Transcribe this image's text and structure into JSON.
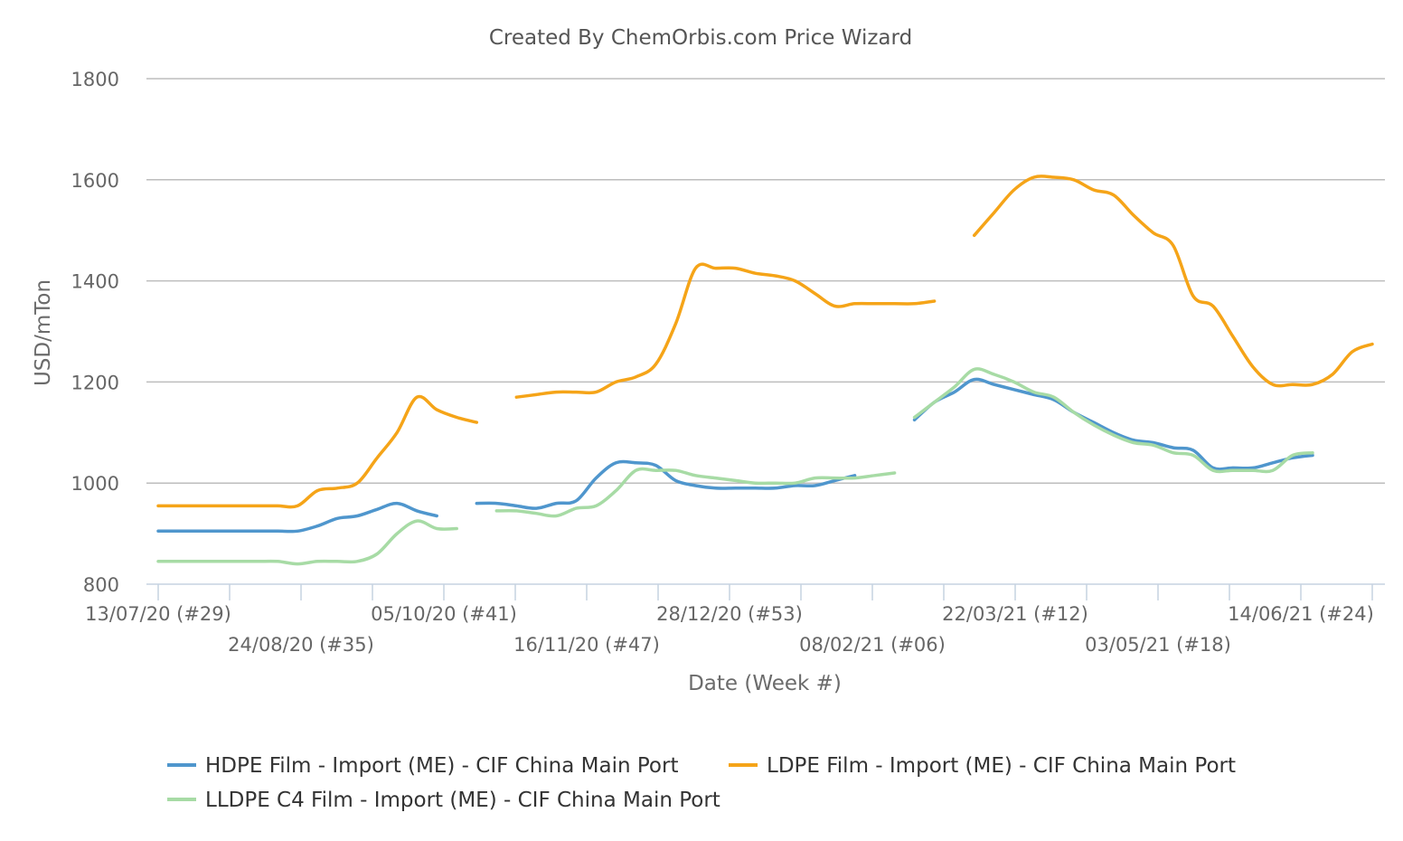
{
  "chart_data": {
    "type": "line",
    "title": "Created By ChemOrbis.com Price Wizard",
    "xlabel": "Date (Week #)",
    "ylabel": "USD/mTon",
    "ylim": [
      800,
      1800
    ],
    "yticks": [
      800,
      1000,
      1200,
      1400,
      1600,
      1800
    ],
    "grid": true,
    "legend_position": "bottom",
    "x_tick_labels": [
      {
        "week": 0,
        "label": "13/07/20 (#29)"
      },
      {
        "week": 6,
        "label": "24/08/20 (#35)"
      },
      {
        "week": 12,
        "label": "05/10/20 (#41)"
      },
      {
        "week": 18,
        "label": "16/11/20 (#47)"
      },
      {
        "week": 24,
        "label": "28/12/20 (#53)"
      },
      {
        "week": 30,
        "label": "08/02/21 (#06)"
      },
      {
        "week": 36,
        "label": "22/03/21 (#12)"
      },
      {
        "week": 42,
        "label": "03/05/21 (#18)"
      },
      {
        "week": 48,
        "label": "14/06/21 (#24)"
      }
    ],
    "series": [
      {
        "name": "HDPE Film - Import (ME) - CIF China Main Port",
        "color": "#4f96cd",
        "segments": [
          [
            [
              0,
              905
            ],
            [
              1,
              905
            ],
            [
              2,
              905
            ],
            [
              3,
              905
            ],
            [
              4,
              905
            ],
            [
              5,
              905
            ],
            [
              6,
              905
            ],
            [
              7,
              905
            ],
            [
              8,
              915
            ],
            [
              9,
              930
            ],
            [
              10,
              935
            ],
            [
              11,
              948
            ],
            [
              12,
              960
            ],
            [
              13,
              945
            ],
            [
              14,
              935
            ]
          ],
          [
            [
              16,
              960
            ],
            [
              17,
              960
            ],
            [
              18,
              955
            ],
            [
              19,
              950
            ],
            [
              20,
              960
            ],
            [
              21,
              965
            ],
            [
              22,
              1010
            ],
            [
              23,
              1040
            ],
            [
              24,
              1040
            ],
            [
              25,
              1035
            ],
            [
              26,
              1005
            ],
            [
              27,
              995
            ],
            [
              28,
              990
            ],
            [
              29,
              990
            ],
            [
              30,
              990
            ],
            [
              31,
              990
            ],
            [
              32,
              995
            ],
            [
              33,
              995
            ],
            [
              34,
              1005
            ],
            [
              35,
              1015
            ]
          ],
          [
            [
              38,
              1125
            ],
            [
              39,
              1160
            ],
            [
              40,
              1180
            ],
            [
              41,
              1205
            ],
            [
              42,
              1195
            ],
            [
              43,
              1185
            ],
            [
              44,
              1175
            ],
            [
              45,
              1165
            ],
            [
              46,
              1140
            ],
            [
              47,
              1120
            ],
            [
              48,
              1100
            ],
            [
              49,
              1085
            ],
            [
              50,
              1080
            ],
            [
              51,
              1070
            ],
            [
              52,
              1065
            ],
            [
              53,
              1030
            ],
            [
              54,
              1030
            ],
            [
              55,
              1030
            ],
            [
              56,
              1040
            ],
            [
              57,
              1050
            ],
            [
              58,
              1055
            ]
          ]
        ]
      },
      {
        "name": "LDPE Film - Import (ME) - CIF China Main Port",
        "color": "#f5a418",
        "segments": [
          [
            [
              0,
              955
            ],
            [
              1,
              955
            ],
            [
              2,
              955
            ],
            [
              3,
              955
            ],
            [
              4,
              955
            ],
            [
              5,
              955
            ],
            [
              6,
              955
            ],
            [
              7,
              955
            ],
            [
              8,
              985
            ],
            [
              9,
              990
            ],
            [
              10,
              1000
            ],
            [
              11,
              1050
            ],
            [
              12,
              1100
            ],
            [
              13,
              1170
            ],
            [
              14,
              1145
            ],
            [
              15,
              1130
            ],
            [
              16,
              1120
            ]
          ],
          [
            [
              18,
              1170
            ],
            [
              19,
              1175
            ],
            [
              20,
              1180
            ],
            [
              21,
              1180
            ],
            [
              22,
              1180
            ],
            [
              23,
              1200
            ],
            [
              24,
              1210
            ],
            [
              25,
              1235
            ],
            [
              26,
              1315
            ],
            [
              27,
              1425
            ],
            [
              28,
              1425
            ],
            [
              29,
              1425
            ],
            [
              30,
              1415
            ],
            [
              31,
              1410
            ],
            [
              32,
              1400
            ],
            [
              33,
              1375
            ],
            [
              34,
              1350
            ],
            [
              35,
              1355
            ],
            [
              36,
              1355
            ],
            [
              37,
              1355
            ],
            [
              38,
              1355
            ],
            [
              39,
              1360
            ]
          ],
          [
            [
              41,
              1490
            ],
            [
              42,
              1535
            ],
            [
              43,
              1580
            ],
            [
              44,
              1605
            ],
            [
              45,
              1605
            ],
            [
              46,
              1600
            ],
            [
              47,
              1580
            ],
            [
              48,
              1570
            ],
            [
              49,
              1530
            ],
            [
              50,
              1495
            ],
            [
              51,
              1470
            ],
            [
              52,
              1370
            ],
            [
              53,
              1350
            ],
            [
              54,
              1290
            ],
            [
              55,
              1230
            ],
            [
              56,
              1195
            ],
            [
              57,
              1195
            ],
            [
              58,
              1195
            ],
            [
              59,
              1215
            ],
            [
              60,
              1260
            ],
            [
              61,
              1275
            ]
          ]
        ]
      },
      {
        "name": "LLDPE C4 Film - Import (ME) - CIF China Main Port",
        "color": "#a7dba5",
        "segments": [
          [
            [
              0,
              845
            ],
            [
              1,
              845
            ],
            [
              2,
              845
            ],
            [
              3,
              845
            ],
            [
              4,
              845
            ],
            [
              5,
              845
            ],
            [
              6,
              845
            ],
            [
              7,
              840
            ],
            [
              8,
              845
            ],
            [
              9,
              845
            ],
            [
              10,
              845
            ],
            [
              11,
              860
            ],
            [
              12,
              900
            ],
            [
              13,
              925
            ],
            [
              14,
              910
            ],
            [
              15,
              910
            ]
          ],
          [
            [
              17,
              945
            ],
            [
              18,
              945
            ],
            [
              19,
              940
            ],
            [
              20,
              935
            ],
            [
              21,
              950
            ],
            [
              22,
              955
            ],
            [
              23,
              985
            ],
            [
              24,
              1025
            ],
            [
              25,
              1025
            ],
            [
              26,
              1025
            ],
            [
              27,
              1015
            ],
            [
              28,
              1010
            ],
            [
              29,
              1005
            ],
            [
              30,
              1000
            ],
            [
              31,
              1000
            ],
            [
              32,
              1000
            ],
            [
              33,
              1010
            ],
            [
              34,
              1010
            ],
            [
              35,
              1010
            ],
            [
              36,
              1015
            ],
            [
              37,
              1020
            ]
          ],
          [
            [
              38,
              1130
            ],
            [
              39,
              1160
            ],
            [
              40,
              1190
            ],
            [
              41,
              1225
            ],
            [
              42,
              1215
            ],
            [
              43,
              1200
            ],
            [
              44,
              1180
            ],
            [
              45,
              1170
            ],
            [
              46,
              1140
            ],
            [
              47,
              1115
            ],
            [
              48,
              1095
            ],
            [
              49,
              1080
            ],
            [
              50,
              1075
            ],
            [
              51,
              1060
            ],
            [
              52,
              1055
            ],
            [
              53,
              1025
            ],
            [
              54,
              1025
            ],
            [
              55,
              1025
            ],
            [
              56,
              1025
            ],
            [
              57,
              1055
            ],
            [
              58,
              1060
            ]
          ]
        ]
      }
    ]
  }
}
